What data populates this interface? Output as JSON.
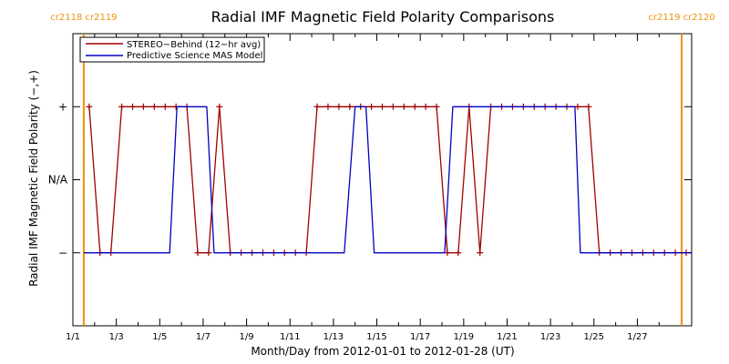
{
  "chart_data": {
    "type": "line",
    "title": "Radial IMF Magnetic Field Polarity Comparisons",
    "xlabel": "Month/Day from 2012-01-01 to 2012-01-28 (UT)",
    "ylabel": "Radial IMF Magnetic Field Polarity (−,+)",
    "xlim": [
      "2012-01-01T00:00",
      "2012-01-29T12:00"
    ],
    "ylim": [
      -2,
      2
    ],
    "x_tick_labels": [
      "1/1",
      "1/3",
      "1/5",
      "1/7",
      "1/9",
      "1/11",
      "1/13",
      "1/15",
      "1/17",
      "1/19",
      "1/21",
      "1/23",
      "1/25",
      "1/27"
    ],
    "x_tick_dates": [
      "2012-01-01",
      "2012-01-03",
      "2012-01-05",
      "2012-01-07",
      "2012-01-09",
      "2012-01-11",
      "2012-01-13",
      "2012-01-15",
      "2012-01-17",
      "2012-01-19",
      "2012-01-21",
      "2012-01-23",
      "2012-01-25",
      "2012-01-27"
    ],
    "y_ticks": [
      {
        "value": 1,
        "label": "+"
      },
      {
        "value": 0,
        "label": "N/A"
      },
      {
        "value": -1,
        "label": "−"
      }
    ],
    "carrington_markers": [
      {
        "date": "2012-01-01T12:00",
        "label": "cr2118 cr2119"
      },
      {
        "date": "2012-01-29T01:00",
        "label": "cr2119 cr2120"
      }
    ],
    "legend_position": "top-left",
    "series": [
      {
        "name": "STEREO−Behind (12−hr avg)",
        "color": "#a00000",
        "markers": true,
        "points": [
          [
            "2012-01-01T18:00",
            1
          ],
          [
            "2012-01-02T06:00",
            -1
          ],
          [
            "2012-01-02T18:00",
            -1
          ],
          [
            "2012-01-03T06:00",
            1
          ],
          [
            "2012-01-03T18:00",
            1
          ],
          [
            "2012-01-04T06:00",
            1
          ],
          [
            "2012-01-04T18:00",
            1
          ],
          [
            "2012-01-05T06:00",
            1
          ],
          [
            "2012-01-05T18:00",
            1
          ],
          [
            "2012-01-06T06:00",
            1
          ],
          [
            "2012-01-06T18:00",
            -1
          ],
          [
            "2012-01-07T06:00",
            -1
          ],
          [
            "2012-01-07T18:00",
            1
          ],
          [
            "2012-01-08T06:00",
            -1
          ],
          [
            "2012-01-08T18:00",
            -1
          ],
          [
            "2012-01-09T06:00",
            -1
          ],
          [
            "2012-01-09T18:00",
            -1
          ],
          [
            "2012-01-10T06:00",
            -1
          ],
          [
            "2012-01-10T18:00",
            -1
          ],
          [
            "2012-01-11T06:00",
            -1
          ],
          [
            "2012-01-11T18:00",
            -1
          ],
          [
            "2012-01-12T06:00",
            1
          ],
          [
            "2012-01-12T18:00",
            1
          ],
          [
            "2012-01-13T06:00",
            1
          ],
          [
            "2012-01-13T18:00",
            1
          ],
          [
            "2012-01-14T06:00",
            1
          ],
          [
            "2012-01-14T18:00",
            1
          ],
          [
            "2012-01-15T06:00",
            1
          ],
          [
            "2012-01-15T18:00",
            1
          ],
          [
            "2012-01-16T06:00",
            1
          ],
          [
            "2012-01-16T18:00",
            1
          ],
          [
            "2012-01-17T06:00",
            1
          ],
          [
            "2012-01-17T18:00",
            1
          ],
          [
            "2012-01-18T06:00",
            -1
          ],
          [
            "2012-01-18T18:00",
            -1
          ],
          [
            "2012-01-19T06:00",
            1
          ],
          [
            "2012-01-19T18:00",
            -1
          ],
          [
            "2012-01-20T06:00",
            1
          ],
          [
            "2012-01-20T18:00",
            1
          ],
          [
            "2012-01-21T06:00",
            1
          ],
          [
            "2012-01-21T18:00",
            1
          ],
          [
            "2012-01-22T06:00",
            1
          ],
          [
            "2012-01-22T18:00",
            1
          ],
          [
            "2012-01-23T06:00",
            1
          ],
          [
            "2012-01-23T18:00",
            1
          ],
          [
            "2012-01-24T06:00",
            1
          ],
          [
            "2012-01-24T18:00",
            1
          ],
          [
            "2012-01-25T06:00",
            -1
          ],
          [
            "2012-01-25T18:00",
            -1
          ],
          [
            "2012-01-26T06:00",
            -1
          ],
          [
            "2012-01-26T18:00",
            -1
          ],
          [
            "2012-01-27T06:00",
            -1
          ],
          [
            "2012-01-27T18:00",
            -1
          ],
          [
            "2012-01-28T06:00",
            -1
          ],
          [
            "2012-01-28T18:00",
            -1
          ],
          [
            "2012-01-29T06:00",
            -1
          ]
        ]
      },
      {
        "name": "Predictive Science MAS Model",
        "color": "#0000c0",
        "markers": false,
        "points": [
          [
            "2012-01-01T12:00",
            -1
          ],
          [
            "2012-01-05T11:00",
            -1
          ],
          [
            "2012-01-05T19:00",
            1
          ],
          [
            "2012-01-07T04:00",
            1
          ],
          [
            "2012-01-07T12:00",
            -1
          ],
          [
            "2012-01-13T12:00",
            -1
          ],
          [
            "2012-01-14T00:00",
            1
          ],
          [
            "2012-01-14T12:00",
            1
          ],
          [
            "2012-01-14T21:00",
            -1
          ],
          [
            "2012-01-18T03:00",
            -1
          ],
          [
            "2012-01-18T12:00",
            1
          ],
          [
            "2012-01-24T03:00",
            1
          ],
          [
            "2012-01-24T09:00",
            -1
          ],
          [
            "2012-01-29T12:00",
            -1
          ]
        ]
      }
    ]
  }
}
